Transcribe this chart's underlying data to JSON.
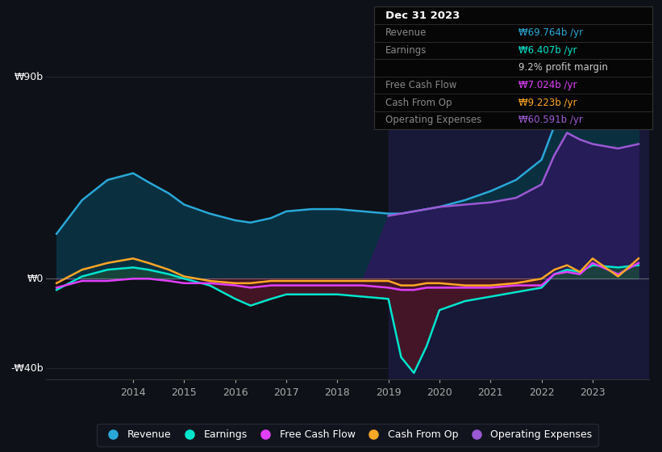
{
  "bg_color": "#0e1117",
  "plot_bg_color": "#0e1117",
  "ylim": [
    -45,
    100
  ],
  "xlim": [
    2012.3,
    2024.1
  ],
  "ylabel_top": "₩90b",
  "ylabel_mid": "₩0",
  "ylabel_bot": "-₩40b",
  "yticks_vals": [
    90,
    0,
    -40
  ],
  "xticks": [
    2014,
    2015,
    2016,
    2017,
    2018,
    2019,
    2020,
    2021,
    2022,
    2023
  ],
  "years": [
    2012.5,
    2013.0,
    2013.5,
    2014.0,
    2014.3,
    2014.7,
    2015.0,
    2015.5,
    2016.0,
    2016.3,
    2016.7,
    2017.0,
    2017.5,
    2018.0,
    2018.5,
    2019.0,
    2019.25,
    2019.5,
    2019.75,
    2020.0,
    2020.5,
    2021.0,
    2021.5,
    2022.0,
    2022.25,
    2022.5,
    2022.75,
    2023.0,
    2023.5,
    2023.9
  ],
  "revenue": [
    20,
    35,
    44,
    47,
    43,
    38,
    33,
    29,
    26,
    25,
    27,
    30,
    31,
    31,
    30,
    29,
    29,
    30,
    31,
    32,
    35,
    39,
    44,
    53,
    68,
    88,
    76,
    77,
    68,
    69
  ],
  "earnings": [
    -5,
    1,
    4,
    5,
    4,
    2,
    0,
    -3,
    -9,
    -12,
    -9,
    -7,
    -7,
    -7,
    -8,
    -9,
    -35,
    -42,
    -30,
    -14,
    -10,
    -8,
    -6,
    -4,
    2,
    4,
    3,
    6,
    5,
    6
  ],
  "free_cash_flow": [
    -4,
    -1,
    -1,
    0,
    0,
    -1,
    -2,
    -2,
    -3,
    -4,
    -3,
    -3,
    -3,
    -3,
    -3,
    -4,
    -5,
    -5,
    -4,
    -4,
    -4,
    -4,
    -3,
    -3,
    2,
    3,
    2,
    7,
    2,
    7
  ],
  "cash_from_op": [
    -2,
    4,
    7,
    9,
    7,
    4,
    1,
    -1,
    -2,
    -2,
    -1,
    -1,
    -1,
    -1,
    -1,
    -1,
    -3,
    -3,
    -2,
    -2,
    -3,
    -3,
    -2,
    0,
    4,
    6,
    3,
    9,
    1,
    9
  ],
  "op_expenses": [
    0,
    0,
    0,
    0,
    0,
    0,
    0,
    0,
    0,
    0,
    0,
    0,
    0,
    0,
    0,
    28,
    29,
    30,
    31,
    32,
    33,
    34,
    36,
    42,
    55,
    65,
    62,
    60,
    58,
    60
  ],
  "revenue_line_color": "#29a8d8",
  "revenue_fill_color": "#0a3040",
  "earnings_line_color": "#00e5cc",
  "earnings_fill_pos_color": "#1a4a3a",
  "earnings_fill_neg_color": "#4a1525",
  "fcf_line_color": "#e040fb",
  "cfo_line_color": "#ffa726",
  "opex_line_color": "#9b59d4",
  "opex_fill_color": "#2a1a5a",
  "highlight_start": 2019.0,
  "highlight_color": "#1a1a40",
  "highlight_alpha": 0.85,
  "grid_color": "#2a2a3a",
  "grid_alpha": 0.8,
  "zero_line_color": "#aaaaaa",
  "zero_line_alpha": 0.5,
  "info_box_bg": "#060606",
  "info_rows": [
    {
      "label": "Dec 31 2023",
      "value": "",
      "label_color": "#ffffff",
      "value_color": "#ffffff",
      "is_header": true
    },
    {
      "label": "Revenue",
      "value": "₩69.764b /yr",
      "label_color": "#888888",
      "value_color": "#29a8d8",
      "is_header": false
    },
    {
      "label": "Earnings",
      "value": "₩6.407b /yr",
      "label_color": "#888888",
      "value_color": "#00e5cc",
      "is_header": false
    },
    {
      "label": "",
      "value": "9.2% profit margin",
      "label_color": "#888888",
      "value_color": "#cccccc",
      "is_header": false
    },
    {
      "label": "Free Cash Flow",
      "value": "₩7.024b /yr",
      "label_color": "#888888",
      "value_color": "#e040fb",
      "is_header": false
    },
    {
      "label": "Cash From Op",
      "value": "₩9.223b /yr",
      "label_color": "#888888",
      "value_color": "#ffa726",
      "is_header": false
    },
    {
      "label": "Operating Expenses",
      "value": "₩60.591b /yr",
      "label_color": "#888888",
      "value_color": "#9b59d4",
      "is_header": false
    }
  ],
  "legend_items": [
    {
      "label": "Revenue",
      "color": "#29a8d8"
    },
    {
      "label": "Earnings",
      "color": "#00e5cc"
    },
    {
      "label": "Free Cash Flow",
      "color": "#e040fb"
    },
    {
      "label": "Cash From Op",
      "color": "#ffa726"
    },
    {
      "label": "Operating Expenses",
      "color": "#9b59d4"
    }
  ],
  "legend_bg": "#12151e",
  "legend_edge": "#2a2d3a"
}
